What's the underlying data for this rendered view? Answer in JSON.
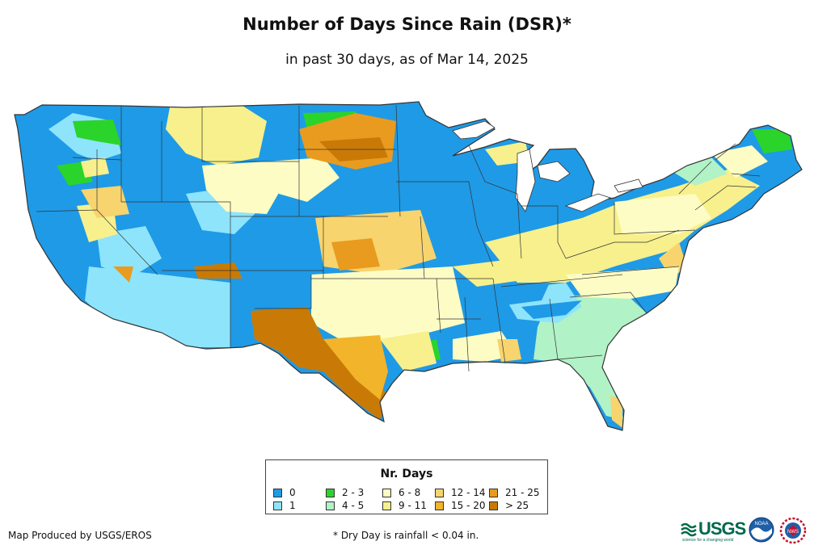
{
  "title": "Number of Days Since Rain (DSR)*",
  "subtitle": "in past 30 days, as of Mar 14, 2025",
  "legend": {
    "title": "Nr. Days",
    "items": [
      {
        "label": "0",
        "color": "#1f9ae6"
      },
      {
        "label": "1",
        "color": "#8ee4fb"
      },
      {
        "label": "2 - 3",
        "color": "#2ad42a"
      },
      {
        "label": "4 - 5",
        "color": "#b1f2c6"
      },
      {
        "label": "6 - 8",
        "color": "#fdfcc4"
      },
      {
        "label": "9 - 11",
        "color": "#f7f08c"
      },
      {
        "label": "12 - 14",
        "color": "#f7d46e"
      },
      {
        "label": "15 - 20",
        "color": "#f1b42a"
      },
      {
        "label": "21 - 25",
        "color": "#e99b1f"
      },
      {
        "label": "> 25",
        "color": "#c97a06"
      }
    ]
  },
  "footer": {
    "producer": "Map Produced by USGS/EROS",
    "note": "* Dry Day is rainfall < 0.04 in."
  },
  "logos": {
    "usgs_text": "USGS",
    "usgs_tagline": "science for a changing world",
    "noaa_text": "NOAA",
    "nws_text": "NWS"
  }
}
